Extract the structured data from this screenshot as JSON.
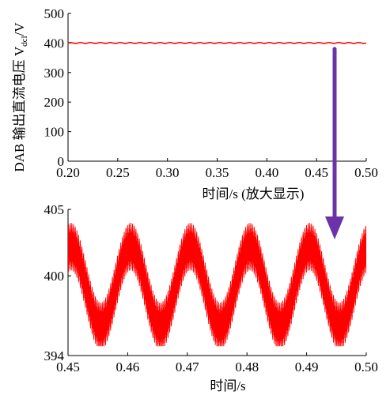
{
  "chart_data": [
    {
      "type": "line",
      "ylabel": "DAB 输出直流电压 V",
      "ylabel_sub": "dcl",
      "ylabel_suffix": "/V",
      "xlabel": "时间/s (放大显示)",
      "xlim": [
        0.2,
        0.5
      ],
      "ylim": [
        0,
        500
      ],
      "xticks": [
        "0.20",
        "0.25",
        "0.30",
        "0.35",
        "0.40",
        "0.45",
        "0.50"
      ],
      "yticks": [
        "0",
        "100",
        "200",
        "300",
        "400",
        "500"
      ],
      "series": [
        {
          "color": "#ff0000",
          "mean": 400,
          "amplitude": 1.5,
          "period": 0.01
        }
      ]
    },
    {
      "type": "line",
      "xlabel": "时间/s",
      "xlim": [
        0.45,
        0.5
      ],
      "ylim": [
        394,
        405
      ],
      "xticks": [
        "0.45",
        "0.46",
        "0.47",
        "0.48",
        "0.49",
        "0.50"
      ],
      "yticks": [
        "394",
        "400",
        "405"
      ],
      "series": [
        {
          "color": "#ff0000",
          "mean": 399.2,
          "low_frequency_amplitude": 3.0,
          "period": 0.01,
          "peaks_x": [
            0.4505,
            0.4605,
            0.4705,
            0.4805,
            0.4905
          ],
          "ripple_amplitude": 1.8,
          "envelope_max": 404.9,
          "envelope_min": 394.7
        }
      ]
    }
  ],
  "annotation": {
    "arrow_color": "#6a33a8"
  }
}
